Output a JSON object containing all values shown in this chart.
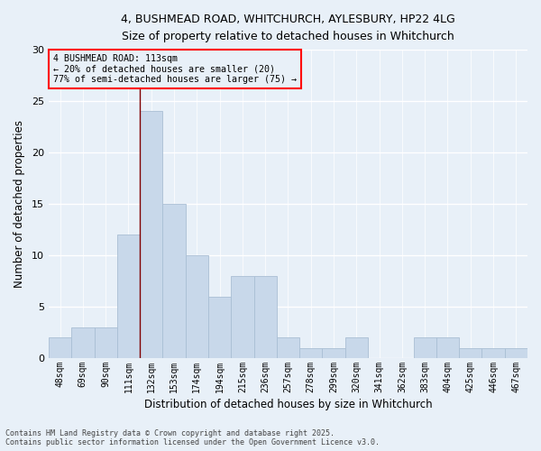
{
  "title_line1": "4, BUSHMEAD ROAD, WHITCHURCH, AYLESBURY, HP22 4LG",
  "title_line2": "Size of property relative to detached houses in Whitchurch",
  "xlabel": "Distribution of detached houses by size in Whitchurch",
  "ylabel": "Number of detached properties",
  "bar_color": "#c8d8ea",
  "bar_edge_color": "#aabfd4",
  "categories": [
    "48sqm",
    "69sqm",
    "90sqm",
    "111sqm",
    "132sqm",
    "153sqm",
    "174sqm",
    "194sqm",
    "215sqm",
    "236sqm",
    "257sqm",
    "278sqm",
    "299sqm",
    "320sqm",
    "341sqm",
    "362sqm",
    "383sqm",
    "404sqm",
    "425sqm",
    "446sqm",
    "467sqm"
  ],
  "values": [
    2,
    3,
    3,
    12,
    24,
    15,
    10,
    6,
    8,
    8,
    2,
    1,
    1,
    2,
    0,
    0,
    2,
    2,
    1,
    1,
    1
  ],
  "ylim": [
    0,
    30
  ],
  "yticks": [
    0,
    5,
    10,
    15,
    20,
    25,
    30
  ],
  "annotation_title": "4 BUSHMEAD ROAD: 113sqm",
  "annotation_line1": "← 20% of detached houses are smaller (20)",
  "annotation_line2": "77% of semi-detached houses are larger (75) →",
  "vline_bin_index": 3,
  "vline_color": "#800000",
  "background_color": "#e8f0f8",
  "grid_color": "#ffffff",
  "footer_line1": "Contains HM Land Registry data © Crown copyright and database right 2025.",
  "footer_line2": "Contains public sector information licensed under the Open Government Licence v3.0."
}
